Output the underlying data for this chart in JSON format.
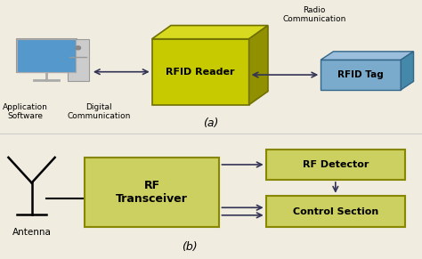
{
  "bg_color": "#f0ece0",
  "rfid_reader_face": "#c8ca00",
  "rfid_reader_top": "#d8da20",
  "rfid_reader_right": "#909000",
  "rfid_reader_edge": "#707000",
  "rfid_tag_face": "#7aaacc",
  "rfid_tag_top": "#9bbedd",
  "rfid_tag_right": "#4488aa",
  "rfid_tag_edge": "#336688",
  "rf_box_face": "#ccd060",
  "rf_box_edge": "#888800",
  "arrow_color": "#333355",
  "label_a": "(a)",
  "label_b": "(b)",
  "rfid_reader_label": "RFID Reader",
  "rfid_tag_label": "RFID Tag",
  "app_software_label": "Application\nSoftware",
  "digital_comm_label": "Digital\nCommunication",
  "radio_comm_label": "Radio\nCommunication",
  "rf_transceiver_label": "RF\nTransceiver",
  "rf_detector_label": "RF Detector",
  "control_section_label": "Control Section",
  "antenna_label": "Antenna"
}
